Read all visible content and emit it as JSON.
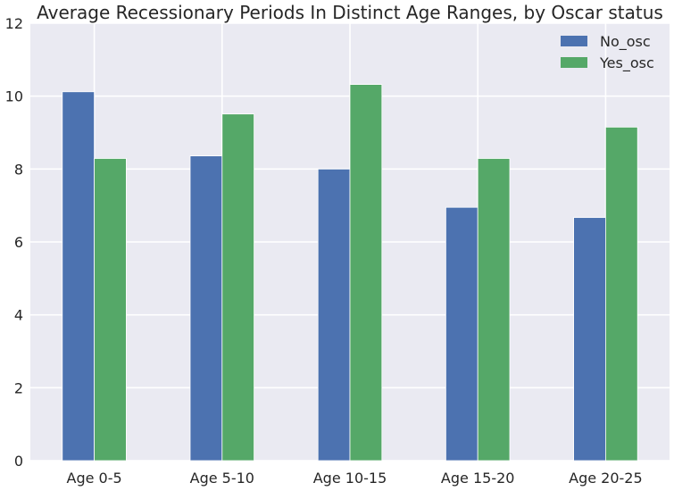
{
  "chart_data": {
    "type": "bar",
    "title": "Average Recessionary Periods In Distinct Age Ranges, by Oscar status",
    "xlabel": "",
    "ylabel": "",
    "categories": [
      "Age 0-5",
      "Age 5-10",
      "Age 10-15",
      "Age 15-20",
      "Age 20-25"
    ],
    "series": [
      {
        "name": "No_osc",
        "color": "#4c72b0",
        "values": [
          10.12,
          8.36,
          8.0,
          6.95,
          6.67
        ]
      },
      {
        "name": "Yes_osc",
        "color": "#55a868",
        "values": [
          8.29,
          9.51,
          10.32,
          8.29,
          9.15
        ]
      }
    ],
    "ylim": [
      0,
      12
    ],
    "yticks": [
      0,
      2,
      4,
      6,
      8,
      10,
      12
    ],
    "grid": true,
    "legend_position": "top-right",
    "background_color": "#eaeaf2",
    "grid_color": "#ffffff"
  }
}
